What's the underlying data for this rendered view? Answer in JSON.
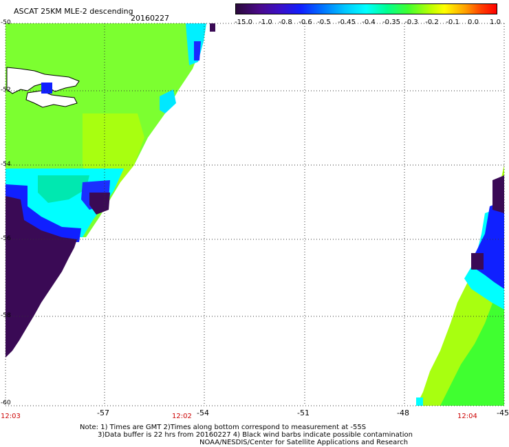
{
  "header": {
    "title": "ASCAT 25KM MLE-2 descending",
    "date": "20160227"
  },
  "colorbar": {
    "tick_labels": [
      "-15.0",
      "-1.0",
      "-0.8",
      "-0.6",
      "-0.5",
      "-0.45",
      "-0.4",
      "-0.35",
      "-0.3",
      "-0.2",
      "-0.1",
      "0.0",
      "1.0"
    ]
  },
  "map": {
    "lat_labels": [
      "-50",
      "-52",
      "-54",
      "-56",
      "-58",
      "-60"
    ],
    "lon_labels": [
      "-57",
      "-54",
      "-51",
      "-48",
      "-45"
    ],
    "time_labels": [
      "12:03",
      "12:02",
      "12:04"
    ],
    "colors": {
      "dark_purple": "#3a0a55",
      "blue": "#1020ff",
      "cyan": "#00ffff",
      "green": "#60ff30",
      "lime": "#a8ff10",
      "land": "#ffffff",
      "time_label": "#cc0000"
    }
  },
  "footer": {
    "note_line1": "Note: 1) Times are GMT 2)Times along bottom correspond to measurement at -55S",
    "note_line2": "3)Data buffer is 22 hrs from 20160227 4) Black wind barbs indicate possible contamination",
    "credit": "NOAA/NESDIS/Center for Satellite Applications and Research"
  }
}
